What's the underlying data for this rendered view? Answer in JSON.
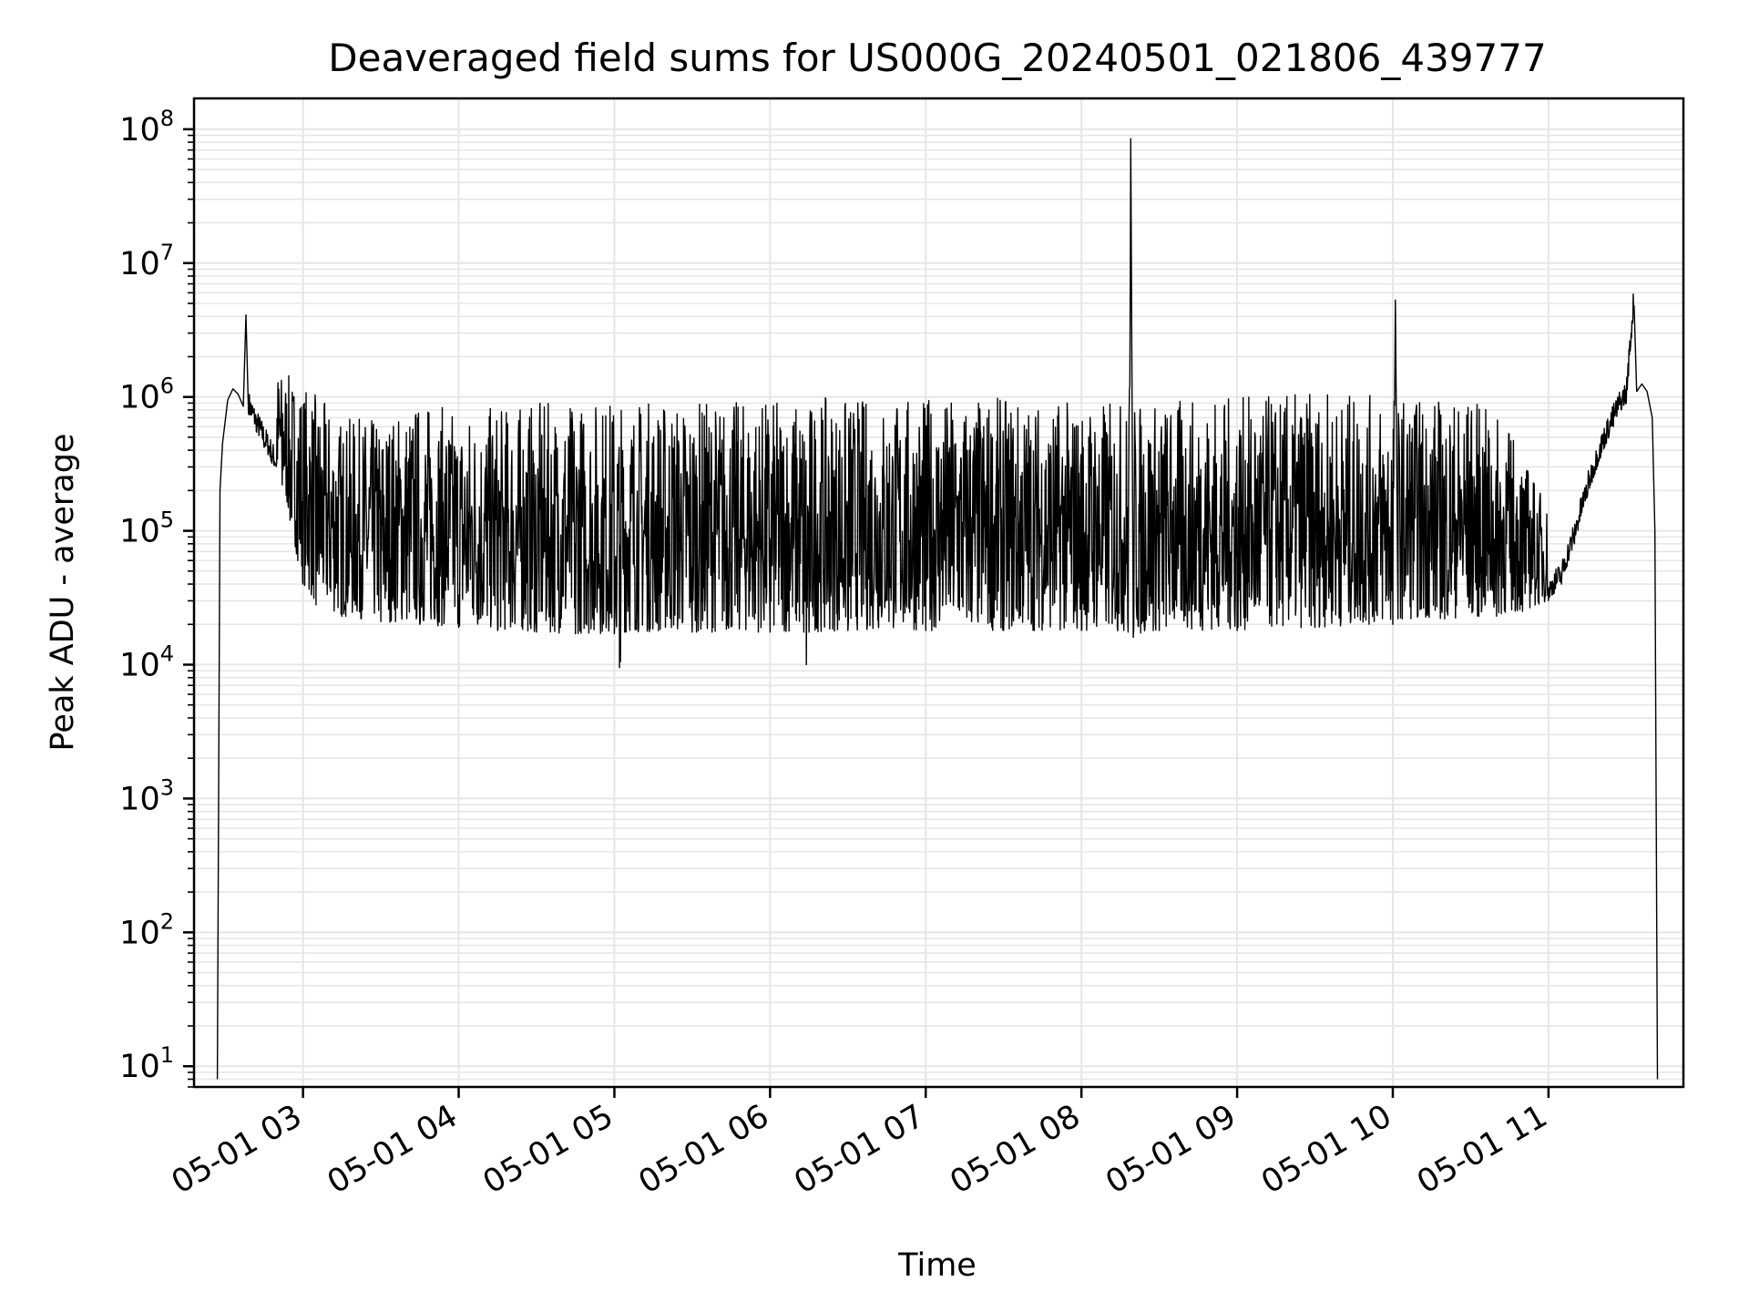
{
  "chart_data": {
    "type": "line",
    "title": "Deaveraged field sums for US000G_20240501_021806_439777",
    "xlabel": "Time",
    "ylabel": "Peak ADU - average",
    "yscale": "log",
    "ylim": [
      7,
      170000000
    ],
    "xlim": [
      "2024-05-01 02:18",
      "2024-05-01 11:52"
    ],
    "grid": true,
    "line_color": "#000000",
    "grid_color": "#e6e6e6",
    "x_ticks": [
      {
        "value": "2024-05-01 03:00",
        "label": "05-01 03"
      },
      {
        "value": "2024-05-01 04:00",
        "label": "05-01 04"
      },
      {
        "value": "2024-05-01 05:00",
        "label": "05-01 05"
      },
      {
        "value": "2024-05-01 06:00",
        "label": "05-01 06"
      },
      {
        "value": "2024-05-01 07:00",
        "label": "05-01 07"
      },
      {
        "value": "2024-05-01 08:00",
        "label": "05-01 08"
      },
      {
        "value": "2024-05-01 09:00",
        "label": "05-01 09"
      },
      {
        "value": "2024-05-01 10:00",
        "label": "05-01 10"
      },
      {
        "value": "2024-05-01 11:00",
        "label": "05-01 11"
      }
    ],
    "y_ticks": [
      {
        "value": 10,
        "base": "10",
        "exp": "1"
      },
      {
        "value": 100,
        "base": "10",
        "exp": "2"
      },
      {
        "value": 1000,
        "base": "10",
        "exp": "3"
      },
      {
        "value": 10000,
        "base": "10",
        "exp": "4"
      },
      {
        "value": 100000,
        "base": "10",
        "exp": "5"
      },
      {
        "value": 1000000,
        "base": "10",
        "exp": "6"
      },
      {
        "value": 10000000,
        "base": "10",
        "exp": "7"
      },
      {
        "value": 100000000,
        "base": "10",
        "exp": "8"
      }
    ],
    "series": [
      {
        "points": [
          [
            "2024-05-01 02:27",
            8
          ],
          [
            "2024-05-01 02:28",
            200000
          ],
          [
            "2024-05-01 02:29",
            450000
          ],
          [
            "2024-05-01 02:31",
            950000
          ],
          [
            "2024-05-01 02:33",
            1150000
          ],
          [
            "2024-05-01 02:35",
            1050000
          ],
          [
            "2024-05-01 02:37",
            850000
          ],
          [
            "2024-05-01 02:38",
            4100000
          ],
          [
            "2024-05-01 02:39",
            750000
          ],
          [
            "2024-05-01 02:42",
            550000
          ],
          [
            "2024-05-01 02:45",
            420000
          ],
          [
            "2024-05-01 02:48",
            320000
          ],
          [
            "2024-05-01 02:52",
            220000
          ],
          [
            "2024-05-01 02:55",
            120000
          ],
          [
            "2024-05-01 02:58",
            60000
          ],
          [
            "2024-05-01 03:00",
            40000
          ],
          [
            "2024-05-01 03:05",
            28000
          ],
          [
            "2024-05-01 03:15",
            23000
          ],
          [
            "2024-05-01 03:30",
            21000
          ],
          [
            "2024-05-01 03:45",
            20000
          ],
          [
            "2024-05-01 04:00",
            19000
          ],
          [
            "2024-05-01 04:15",
            18000
          ],
          [
            "2024-05-01 04:30",
            17500
          ],
          [
            "2024-05-01 04:45",
            17000
          ],
          [
            "2024-05-01 05:00",
            17000
          ],
          [
            "2024-05-01 05:02",
            9500
          ],
          [
            "2024-05-01 05:04",
            17500
          ],
          [
            "2024-05-01 05:30",
            17500
          ],
          [
            "2024-05-01 06:00",
            17500
          ],
          [
            "2024-05-01 06:13",
            17500
          ],
          [
            "2024-05-01 06:14",
            10000
          ],
          [
            "2024-05-01 06:15",
            17500
          ],
          [
            "2024-05-01 06:30",
            18000
          ],
          [
            "2024-05-01 07:00",
            18000
          ],
          [
            "2024-05-01 07:30",
            18000
          ],
          [
            "2024-05-01 08:00",
            18000
          ],
          [
            "2024-05-01 08:18",
            17500
          ],
          [
            "2024-05-01 08:19",
            85000000
          ],
          [
            "2024-05-01 08:20",
            16000
          ],
          [
            "2024-05-01 08:30",
            18000
          ],
          [
            "2024-05-01 09:00",
            18000
          ],
          [
            "2024-05-01 09:30",
            19000
          ],
          [
            "2024-05-01 10:00",
            20000
          ],
          [
            "2024-05-01 10:01",
            5300000
          ],
          [
            "2024-05-01 10:02",
            22000
          ],
          [
            "2024-05-01 10:20",
            22000
          ],
          [
            "2024-05-01 10:40",
            23000
          ],
          [
            "2024-05-01 10:50",
            25000
          ],
          [
            "2024-05-01 11:00",
            30000
          ],
          [
            "2024-05-01 11:05",
            40000
          ],
          [
            "2024-05-01 11:10",
            80000
          ],
          [
            "2024-05-01 11:15",
            180000
          ],
          [
            "2024-05-01 11:20",
            350000
          ],
          [
            "2024-05-01 11:25",
            600000
          ],
          [
            "2024-05-01 11:28",
            800000
          ],
          [
            "2024-05-01 11:30",
            900000
          ],
          [
            "2024-05-01 11:33",
            4800000
          ],
          [
            "2024-05-01 11:34",
            1100000
          ],
          [
            "2024-05-01 11:36",
            1250000
          ],
          [
            "2024-05-01 11:38",
            1100000
          ],
          [
            "2024-05-01 11:40",
            700000
          ],
          [
            "2024-05-01 11:41",
            100000
          ],
          [
            "2024-05-01 11:42",
            8
          ]
        ],
        "envelope_upper": [
          [
            "2024-05-01 02:50",
            1600000
          ],
          [
            "2024-05-01 03:00",
            1300000
          ],
          [
            "2024-05-01 03:15",
            700000
          ],
          [
            "2024-05-01 03:30",
            700000
          ],
          [
            "2024-05-01 03:45",
            950000
          ],
          [
            "2024-05-01 04:00",
            800000
          ],
          [
            "2024-05-01 04:30",
            900000
          ],
          [
            "2024-05-01 05:00",
            1000000
          ],
          [
            "2024-05-01 05:30",
            950000
          ],
          [
            "2024-05-01 06:00",
            950000
          ],
          [
            "2024-05-01 06:30",
            1000000
          ],
          [
            "2024-05-01 07:00",
            1000000
          ],
          [
            "2024-05-01 07:30",
            1000000
          ],
          [
            "2024-05-01 08:00",
            950000
          ],
          [
            "2024-05-01 08:30",
            950000
          ],
          [
            "2024-05-01 09:00",
            1000000
          ],
          [
            "2024-05-01 09:30",
            1100000
          ],
          [
            "2024-05-01 10:00",
            1000000
          ],
          [
            "2024-05-01 10:30",
            1000000
          ],
          [
            "2024-05-01 10:45",
            600000
          ],
          [
            "2024-05-01 11:00",
            150000
          ]
        ]
      }
    ]
  }
}
